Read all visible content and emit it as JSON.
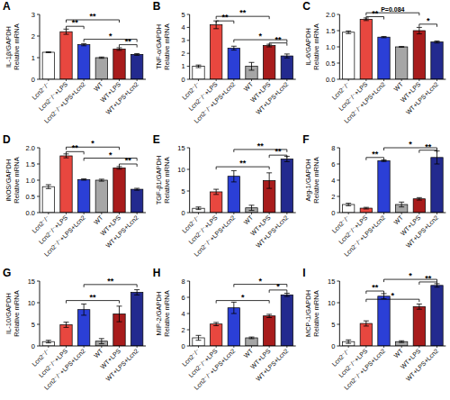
{
  "chart_data": [
    {
      "type": "bar",
      "title": "A",
      "y_label": "IL-1β/GAPDH\nRelative mRNA",
      "categories": [
        "Lcn2⁻/⁻",
        "Lcn2⁻/⁻+LPS",
        "Lcn2⁻/⁻+LPS+Lcn2",
        "WT",
        "WT+LPS",
        "WT+LPS+Lcn2"
      ],
      "values": [
        1.25,
        2.2,
        1.6,
        1.0,
        1.4,
        1.15
      ],
      "errors": [
        0.02,
        0.12,
        0.05,
        0.03,
        0.06,
        0.04
      ],
      "colors": [
        "#ffffff",
        "#e8473f",
        "#2b3fd6",
        "#a6a6a6",
        "#a81c1c",
        "#232a8f"
      ],
      "ylim": [
        0,
        3
      ],
      "yticks": [
        0,
        1,
        2,
        3
      ],
      "grid": false,
      "annotations": [
        {
          "from": 1,
          "to": 2,
          "y": 2.45,
          "text": "**"
        },
        {
          "from": 1,
          "to": 4,
          "y": 2.75,
          "text": "**"
        },
        {
          "from": 2,
          "to": 5,
          "y": 1.85,
          "text": "*"
        },
        {
          "from": 4,
          "to": 5,
          "y": 1.6,
          "text": "**"
        }
      ]
    },
    {
      "type": "bar",
      "title": "B",
      "y_label": "TNF-α/GAPDH\nRelative mRNA",
      "categories": [
        "Lcn2⁻/⁻",
        "Lcn2⁻/⁻+LPS",
        "Lcn2⁻/⁻+LPS+Lcn2",
        "WT",
        "WT+LPS",
        "WT+LPS+Lcn2"
      ],
      "values": [
        1.0,
        4.2,
        2.4,
        1.0,
        2.6,
        1.8
      ],
      "errors": [
        0.1,
        0.3,
        0.15,
        0.3,
        0.1,
        0.15
      ],
      "colors": [
        "#ffffff",
        "#e8473f",
        "#2b3fd6",
        "#a6a6a6",
        "#a81c1c",
        "#232a8f"
      ],
      "ylim": [
        0,
        5
      ],
      "yticks": [
        0,
        1,
        2,
        3,
        4,
        5
      ],
      "grid": false,
      "annotations": [
        {
          "from": 1,
          "to": 2,
          "y": 4.5,
          "text": "**"
        },
        {
          "from": 1,
          "to": 4,
          "y": 4.85,
          "text": "**"
        },
        {
          "from": 2,
          "to": 5,
          "y": 3.05,
          "text": "*"
        },
        {
          "from": 4,
          "to": 5,
          "y": 2.8,
          "text": "**"
        }
      ]
    },
    {
      "type": "bar",
      "title": "C",
      "y_label": "IL-6/GAPDH\nRelative mRNA",
      "categories": [
        "Lcn2⁻/⁻",
        "Lcn2⁻/⁻+LPS",
        "Lcn2⁻/⁻+LPS+Lcn2",
        "WT",
        "WT+LPS",
        "WT+LPS+Lcn2"
      ],
      "values": [
        1.45,
        1.85,
        1.3,
        1.0,
        1.5,
        1.15
      ],
      "errors": [
        0.04,
        0.04,
        0.02,
        0.01,
        0.1,
        0.03
      ],
      "colors": [
        "#ffffff",
        "#e8473f",
        "#2b3fd6",
        "#a6a6a6",
        "#a81c1c",
        "#232a8f"
      ],
      "ylim": [
        0,
        2
      ],
      "yticks": [
        {
          "value": 0,
          "label": "0.0"
        },
        0.5,
        {
          "value": 1,
          "label": "1.0"
        },
        1.5,
        {
          "value": 2,
          "label": "2.0"
        }
      ],
      "grid": false,
      "annotations": [
        {
          "from": 1,
          "to": 2,
          "y": 1.93,
          "text": "**"
        },
        {
          "from": 1,
          "to": 4,
          "y": 2.05,
          "text": "P=0.084"
        },
        {
          "from": 4,
          "to": 5,
          "y": 1.7,
          "text": "*"
        }
      ]
    },
    {
      "type": "bar",
      "title": "D",
      "y_label": "iNOS/GAPDH\nRelative mRNA",
      "categories": [
        "Lcn2⁻/⁻",
        "Lcn2⁻/⁻+LPS",
        "Lcn2⁻/⁻+LPS+Lcn2",
        "WT",
        "WT+LPS",
        "WT+LPS+Lcn2"
      ],
      "values": [
        0.8,
        1.75,
        1.02,
        1.0,
        1.38,
        0.72
      ],
      "errors": [
        0.06,
        0.06,
        0.02,
        0.03,
        0.04,
        0.03
      ],
      "colors": [
        "#ffffff",
        "#e8473f",
        "#2b3fd6",
        "#a6a6a6",
        "#a81c1c",
        "#232a8f"
      ],
      "ylim": [
        0,
        2
      ],
      "yticks": [
        {
          "value": 0,
          "label": "0.0"
        },
        0.5,
        {
          "value": 1,
          "label": "1.0"
        },
        1.5,
        {
          "value": 2,
          "label": "2.0"
        }
      ],
      "grid": false,
      "annotations": [
        {
          "from": 1,
          "to": 2,
          "y": 1.88,
          "text": "**"
        },
        {
          "from": 1,
          "to": 4,
          "y": 2.02,
          "text": "*"
        },
        {
          "from": 2,
          "to": 5,
          "y": 1.68,
          "text": "*"
        },
        {
          "from": 4,
          "to": 5,
          "y": 1.5,
          "text": "**"
        }
      ]
    },
    {
      "type": "bar",
      "title": "E",
      "y_label": "TGF-β1/GAPDH\nRelative mRNA",
      "categories": [
        "Lcn2⁻/⁻",
        "Lcn2⁻/⁻+LPS",
        "Lcn2⁻/⁻+LPS+Lcn2",
        "WT",
        "WT+LPS",
        "WT+LPS+Lcn2"
      ],
      "values": [
        1.0,
        4.8,
        8.4,
        1.1,
        7.4,
        12.4
      ],
      "errors": [
        0.3,
        0.6,
        1.3,
        0.6,
        1.8,
        0.6
      ],
      "colors": [
        "#ffffff",
        "#e8473f",
        "#2b3fd6",
        "#a6a6a6",
        "#a81c1c",
        "#232a8f"
      ],
      "ylim": [
        0,
        15
      ],
      "yticks": [
        0,
        5,
        10,
        15
      ],
      "grid": false,
      "annotations": [
        {
          "from": 2,
          "to": 5,
          "y": 14.6,
          "text": "**"
        },
        {
          "from": 1,
          "to": 4,
          "y": 10.6,
          "text": "**"
        },
        {
          "from": 4,
          "to": 5,
          "y": 13.3,
          "text": "**"
        }
      ]
    },
    {
      "type": "bar",
      "title": "F",
      "y_label": "Arg-1/GAPDH\nRelative mRNA",
      "categories": [
        "Lcn2⁻/⁻",
        "Lcn2⁻/⁻+LPS",
        "Lcn2⁻/⁻+LPS+Lcn2",
        "WT",
        "WT+LPS",
        "WT+LPS+Lcn2"
      ],
      "values": [
        1.0,
        0.55,
        6.4,
        1.0,
        1.7,
        6.8
      ],
      "errors": [
        0.15,
        0.1,
        0.1,
        0.3,
        0.15,
        0.8
      ],
      "colors": [
        "#ffffff",
        "#e8473f",
        "#2b3fd6",
        "#a6a6a6",
        "#a81c1c",
        "#232a8f"
      ],
      "ylim": [
        0,
        8
      ],
      "yticks": [
        0,
        2,
        4,
        6,
        8
      ],
      "grid": false,
      "annotations": [
        {
          "from": 2,
          "to": 5,
          "y": 8.0,
          "text": "*"
        },
        {
          "from": 1,
          "to": 2,
          "y": 6.8,
          "text": "**"
        },
        {
          "from": 4,
          "to": 5,
          "y": 7.7,
          "text": "**"
        }
      ]
    },
    {
      "type": "bar",
      "title": "G",
      "y_label": "IL-10/GAPDH\nRelative mRNA",
      "categories": [
        "Lcn2⁻/⁻",
        "Lcn2⁻/⁻+LPS",
        "Lcn2⁻/⁻+LPS+Lcn2",
        "WT",
        "WT+LPS",
        "WT+LPS+Lcn2"
      ],
      "values": [
        1.0,
        4.9,
        8.4,
        1.1,
        7.4,
        12.4
      ],
      "errors": [
        0.3,
        0.6,
        1.3,
        0.6,
        1.8,
        0.6
      ],
      "colors": [
        "#ffffff",
        "#e8473f",
        "#2b3fd6",
        "#a6a6a6",
        "#a81c1c",
        "#232a8f"
      ],
      "ylim": [
        0,
        15
      ],
      "yticks": [
        0,
        5,
        10,
        15
      ],
      "grid": false,
      "annotations": [
        {
          "from": 2,
          "to": 5,
          "y": 14.2,
          "text": "**"
        },
        {
          "from": 1,
          "to": 4,
          "y": 10.5,
          "text": "**"
        }
      ]
    },
    {
      "type": "bar",
      "title": "H",
      "y_label": "MIP-2/GAPDH\nRelative mRNA",
      "categories": [
        "Lcn2⁻/⁻",
        "Lcn2⁻/⁻+LPS",
        "Lcn2⁻/⁻+LPS+Lcn2",
        "WT",
        "WT+LPS",
        "WT+LPS+Lcn2"
      ],
      "values": [
        1.0,
        2.7,
        4.7,
        1.0,
        3.7,
        6.3
      ],
      "errors": [
        0.3,
        0.2,
        0.7,
        0.1,
        0.2,
        0.2
      ],
      "colors": [
        "#ffffff",
        "#e8473f",
        "#2b3fd6",
        "#a6a6a6",
        "#a81c1c",
        "#232a8f"
      ],
      "ylim": [
        0,
        8
      ],
      "yticks": [
        0,
        2,
        4,
        6,
        8
      ],
      "grid": false,
      "annotations": [
        {
          "from": 2,
          "to": 5,
          "y": 7.6,
          "text": "*"
        },
        {
          "from": 1,
          "to": 4,
          "y": 5.6,
          "text": "*"
        },
        {
          "from": 4,
          "to": 5,
          "y": 6.9,
          "text": "*"
        }
      ]
    },
    {
      "type": "bar",
      "title": "I",
      "y_label": "MCP-1/GAPDH\nRelative mRNA",
      "categories": [
        "Lcn2⁻/⁻",
        "Lcn2⁻/⁻+LPS",
        "Lcn2⁻/⁻+LPS+Lcn2",
        "WT",
        "WT+LPS",
        "WT+LPS+Lcn2"
      ],
      "values": [
        1.0,
        5.2,
        11.5,
        1.0,
        9.1,
        14.0
      ],
      "errors": [
        0.4,
        0.6,
        0.6,
        0.2,
        0.6,
        0.4
      ],
      "colors": [
        "#ffffff",
        "#e8473f",
        "#2b3fd6",
        "#a6a6a6",
        "#a81c1c",
        "#232a8f"
      ],
      "ylim": [
        0,
        15
      ],
      "yticks": [
        0,
        5,
        10,
        15
      ],
      "grid": false,
      "annotations": [
        {
          "from": 2,
          "to": 5,
          "y": 15.4,
          "text": "*"
        },
        {
          "from": 1,
          "to": 2,
          "y": 12.7,
          "text": "**"
        },
        {
          "from": 1,
          "to": 4,
          "y": 10.8,
          "text": "*"
        },
        {
          "from": 4,
          "to": 5,
          "y": 14.8,
          "text": "**"
        }
      ]
    }
  ]
}
